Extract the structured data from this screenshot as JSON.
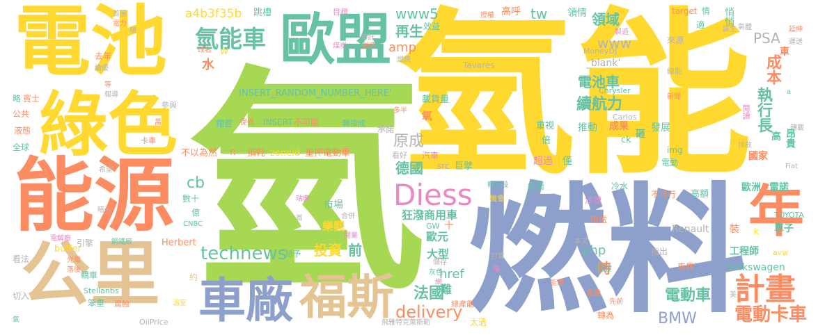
{
  "palette": {
    "green": "#a6d854",
    "yellow": "#ffd92f",
    "blue": "#8da0cb",
    "orange": "#fc8d62",
    "teal": "#66c2a5",
    "pink": "#e78ac3",
    "tan": "#e5c494",
    "gray": "#b3b3b3"
  },
  "words": [
    {
      "text": "氫",
      "color": "green"
    },
    {
      "text": "氫能",
      "color": "yellow"
    },
    {
      "text": "燃料",
      "color": "blue"
    },
    {
      "text": "電池",
      "color": "yellow"
    },
    {
      "text": "綠色",
      "color": "yellow"
    },
    {
      "text": "能源",
      "color": "orange"
    },
    {
      "text": "公里",
      "color": "tan"
    },
    {
      "text": "歐盟",
      "color": "teal"
    },
    {
      "text": "車廠",
      "color": "blue"
    },
    {
      "text": "福斯",
      "color": "tan"
    },
    {
      "text": "年",
      "color": "orange"
    },
    {
      "text": "計畫",
      "color": "orange"
    },
    {
      "text": "Diess",
      "color": "pink"
    },
    {
      "text": "氫能車",
      "color": "teal"
    },
    {
      "text": "technews",
      "color": "teal"
    },
    {
      "text": "電動卡車",
      "color": "orange"
    },
    {
      "text": "電動車",
      "color": "teal"
    },
    {
      "text": "BMW",
      "color": "blue"
    },
    {
      "text": "delivery",
      "color": "orange"
    },
    {
      "text": "法國",
      "color": "teal"
    },
    {
      "text": "執行長",
      "color": "teal"
    },
    {
      "text": "續航力",
      "color": "teal"
    },
    {
      "text": "電池車",
      "color": "teal"
    },
    {
      "text": "成本",
      "color": "orange"
    },
    {
      "text": "www5",
      "color": "teal"
    },
    {
      "text": "www",
      "color": "gray"
    },
    {
      "text": "PSA",
      "color": "gray"
    },
    {
      "text": "領域",
      "color": "teal"
    },
    {
      "text": "tw",
      "color": "teal"
    },
    {
      "text": "再生",
      "color": "teal"
    },
    {
      "text": "amp",
      "color": "orange"
    },
    {
      "text": "php",
      "color": "teal"
    },
    {
      "text": "href",
      "color": "teal"
    },
    {
      "text": "投資",
      "color": "yellow"
    },
    {
      "text": "前",
      "color": "teal"
    },
    {
      "text": "原成",
      "color": "gray"
    },
    {
      "text": "德國",
      "color": "teal"
    },
    {
      "text": "cb",
      "color": "teal"
    },
    {
      "text": "水",
      "color": "orange"
    },
    {
      "text": "歐元",
      "color": "teal"
    },
    {
      "text": "時",
      "color": "orange"
    },
    {
      "text": "大型",
      "color": "teal"
    },
    {
      "text": "難",
      "color": "teal"
    },
    {
      "text": "狂潑商用車",
      "color": "teal"
    },
    {
      "text": "樂觀",
      "color": "yellow"
    },
    {
      "text": "市場",
      "color": "teal"
    },
    {
      "text": "a4b3f35b",
      "color": "yellow"
    },
    {
      "text": "INSERT_RANDOM_NUMBER_HERE'",
      "color": "teal"
    },
    {
      "text": "INSERT",
      "color": "teal"
    },
    {
      "text": "不可能",
      "color": "orange"
    },
    {
      "text": "轉換成",
      "color": "teal"
    },
    {
      "text": "zoneid",
      "color": "yellow"
    },
    {
      "text": "重押電動車",
      "color": "orange"
    },
    {
      "text": "不以為然",
      "color": "orange"
    },
    {
      "text": "損耗",
      "color": "orange"
    },
    {
      "text": "n",
      "color": "orange"
    },
    {
      "text": "_blank'",
      "color": "gray"
    },
    {
      "text": "Volkswagen",
      "color": "teal"
    },
    {
      "text": "Renault",
      "color": "gray"
    },
    {
      "text": "工程師",
      "color": "teal"
    },
    {
      "text": "車子",
      "color": "teal"
    },
    {
      "text": "TOYOTA",
      "color": "teal"
    },
    {
      "text": "歐洲",
      "color": "teal"
    },
    {
      "text": "雷諾",
      "color": "teal"
    },
    {
      "text": "放棄",
      "color": "teal"
    },
    {
      "text": "國家",
      "color": "orange"
    },
    {
      "text": "昂貴",
      "color": "teal"
    },
    {
      "text": "高",
      "color": "teal"
    },
    {
      "text": "車",
      "color": "orange"
    },
    {
      "text": "高呼",
      "color": "orange"
    },
    {
      "text": "領情",
      "color": "teal"
    },
    {
      "text": "悄悄",
      "color": "teal"
    },
    {
      "text": "Tavares",
      "color": "gray"
    },
    {
      "text": "MoneyDJ",
      "color": "gray"
    },
    {
      "text": "Chrysler",
      "color": "teal"
    },
    {
      "text": "Carlos",
      "color": "gray"
    },
    {
      "text": "新聞",
      "color": "orange"
    },
    {
      "text": "閱讀",
      "color": "pink"
    },
    {
      "text": "來源",
      "color": "gray"
    },
    {
      "text": "線能",
      "color": "gray"
    },
    {
      "text": "電動",
      "color": "teal"
    },
    {
      "text": "img",
      "color": "teal"
    },
    {
      "text": "發展",
      "color": "teal"
    },
    {
      "text": "擔任",
      "color": "teal"
    },
    {
      "text": "砸",
      "color": "teal"
    },
    {
      "text": "ck",
      "color": "teal"
    },
    {
      "text": "成果",
      "color": "orange"
    },
    {
      "text": "推動",
      "color": "teal"
    },
    {
      "text": "重視",
      "color": "teal"
    },
    {
      "text": "倍",
      "color": "teal"
    },
    {
      "text": "超過",
      "color": "pink"
    },
    {
      "text": "僅",
      "color": "teal"
    },
    {
      "text": "巨擘",
      "color": "teal"
    },
    {
      "text": "src",
      "color": "gray"
    },
    {
      "text": "看好",
      "color": "gray"
    },
    {
      "text": "汽車",
      "color": "pink"
    },
    {
      "text": "承諾",
      "color": "gray"
    },
    {
      "text": "載貨量",
      "color": "teal"
    },
    {
      "text": "氧",
      "color": "orange"
    },
    {
      "text": "多半",
      "color": "orange"
    },
    {
      "text": "公共",
      "color": "orange"
    },
    {
      "text": "液態",
      "color": "orange"
    },
    {
      "text": "全球",
      "color": "teal"
    },
    {
      "text": "賓士",
      "color": "orange"
    },
    {
      "text": "略",
      "color": "teal"
    },
    {
      "text": "去年",
      "color": "orange"
    },
    {
      "text": "續優",
      "color": "gray"
    },
    {
      "text": "參與",
      "color": "gray"
    },
    {
      "text": "卡車",
      "color": "orange"
    },
    {
      "text": "擱置",
      "color": "teal"
    },
    {
      "text": "提倡",
      "color": "orange"
    },
    {
      "text": "數十",
      "color": "teal"
    },
    {
      "text": "億",
      "color": "teal"
    },
    {
      "text": "首",
      "color": "gray"
    },
    {
      "text": "瑞典",
      "color": "pink"
    },
    {
      "text": "合併",
      "color": "gray"
    },
    {
      "text": "開業",
      "color": "pink"
    },
    {
      "text": "給予",
      "color": "teal"
    },
    {
      "text": "約",
      "color": "tan"
    },
    {
      "text": "Herbert",
      "color": "orange"
    },
    {
      "text": "CNBC",
      "color": "teal"
    },
    {
      "text": "buffer",
      "color": "yellow"
    },
    {
      "text": "引擎",
      "color": "gray"
    },
    {
      "text": "轎車",
      "color": "teal"
    },
    {
      "text": "看法",
      "color": "gray"
    },
    {
      "text": "笨重",
      "color": "teal"
    },
    {
      "text": "腐蝕",
      "color": "orange"
    },
    {
      "text": "溫室",
      "color": "yellow"
    },
    {
      "text": "Stellantis",
      "color": "teal"
    },
    {
      "text": "OilPrice",
      "color": "gray"
    },
    {
      "text": "飛雅特克萊斯勒",
      "color": "gray"
    },
    {
      "text": "總產能",
      "color": "orange"
    },
    {
      "text": "太過",
      "color": "yellow"
    },
    {
      "text": "轉為",
      "color": "orange"
    },
    {
      "text": "先前",
      "color": "orange"
    },
    {
      "text": "風電",
      "color": "orange"
    },
    {
      "text": "能用",
      "color": "orange"
    },
    {
      "text": "本文",
      "color": "gray"
    },
    {
      "text": "研發",
      "color": "teal"
    },
    {
      "text": "車界",
      "color": "orange"
    },
    {
      "text": "指出",
      "color": "gray"
    },
    {
      "text": "用處",
      "color": "orange"
    },
    {
      "text": "涉獵",
      "color": "pink"
    },
    {
      "text": "緩衝",
      "color": "teal"
    },
    {
      "text": "機會",
      "color": "yellow"
    },
    {
      "text": "概念股",
      "color": "teal"
    },
    {
      "text": "不可行",
      "color": "orange"
    },
    {
      "text": "高額",
      "color": "teal"
    },
    {
      "text": "冷水",
      "color": "teal"
    },
    {
      "text": "GW",
      "color": "teal"
    },
    {
      "text": "十",
      "color": "orange"
    },
    {
      "text": "儲存",
      "color": "gray"
    },
    {
      "text": "灰色",
      "color": "teal"
    },
    {
      "text": "打算",
      "color": "gray"
    },
    {
      "text": "裝",
      "color": "orange"
    },
    {
      "text": "k",
      "color": "yellow"
    },
    {
      "text": "avw",
      "color": "yellow"
    },
    {
      "text": "美",
      "color": "gray"
    },
    {
      "text": "Fiat",
      "color": "gray"
    },
    {
      "text": "氣體",
      "color": "gray"
    },
    {
      "text": "延伸",
      "color": "orange"
    },
    {
      "text": "運送",
      "color": "gray"
    },
    {
      "text": "誕生",
      "color": "gray"
    },
    {
      "text": "情",
      "color": "teal"
    },
    {
      "text": "適",
      "color": "teal"
    },
    {
      "text": "target",
      "color": "orange"
    },
    {
      "text": "跳槽",
      "color": "teal"
    },
    {
      "text": "目標",
      "color": "pink"
    },
    {
      "text": "授權",
      "color": "orange"
    },
    {
      "text": "效益",
      "color": "teal"
    },
    {
      "text": "預計",
      "color": "gray"
    },
    {
      "text": "創造",
      "color": "orange"
    },
    {
      "text": "煤炭",
      "color": "pink"
    },
    {
      "text": "燃燒",
      "color": "gray"
    },
    {
      "text": "ETF",
      "color": "yellow"
    },
    {
      "text": "製造",
      "color": "pink"
    },
    {
      "text": "首圖",
      "color": "gray"
    },
    {
      "text": "電力",
      "color": "orange"
    },
    {
      "text": "改名",
      "color": "orange"
    },
    {
      "text": "W",
      "color": "yellow"
    },
    {
      "text": "希望",
      "color": "gray"
    },
    {
      "text": "暗示",
      "color": "gray"
    },
    {
      "text": "電解廠",
      "color": "pink"
    },
    {
      "text": "鋼鐵廠",
      "color": "teal"
    },
    {
      "text": "光電",
      "color": "orange"
    },
    {
      "text": "落後",
      "color": "orange"
    },
    {
      "text": "切入",
      "color": "gray"
    },
    {
      "text": "氣",
      "color": "teal"
    },
    {
      "text": "a",
      "color": "teal"
    },
    {
      "text": "轉載",
      "color": "gray"
    },
    {
      "text": "排放",
      "color": "gray"
    },
    {
      "text": "地",
      "color": "yellow"
    },
    {
      "text": "萬",
      "color": "orange"
    },
    {
      "text": "網",
      "color": "pink"
    },
    {
      "text": "檔",
      "color": "pink"
    },
    {
      "text": "報導",
      "color": "gray"
    },
    {
      "text": "等",
      "color": "orange"
    },
    {
      "text": "順",
      "color": "gray"
    },
    {
      "text": "所",
      "color": "yellow"
    }
  ]
}
